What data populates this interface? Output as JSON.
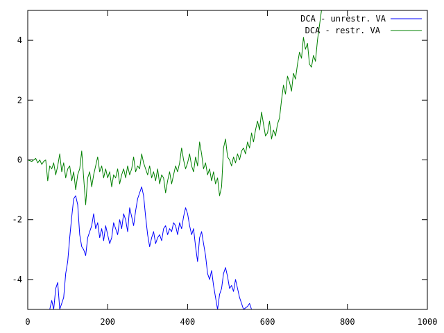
{
  "chart_data": {
    "type": "line",
    "title": "",
    "xlabel": "",
    "ylabel": "",
    "xlim": [
      0,
      1000
    ],
    "ylim": [
      -5,
      5
    ],
    "x_ticks": [
      0,
      200,
      400,
      600,
      800,
      1000
    ],
    "y_ticks": [
      -4,
      -2,
      0,
      2,
      4
    ],
    "x_tick_labels": [
      "0",
      "200",
      "400",
      "600",
      "800",
      "1000"
    ],
    "y_tick_labels": [
      "-4",
      "-2",
      "0",
      "2",
      "4"
    ],
    "grid": false,
    "legend_position": "top-right",
    "series": [
      {
        "name": "DCA - unrestr. VA",
        "color": "#0000ff",
        "points": [
          [
            55,
            -5.0
          ],
          [
            60,
            -4.7
          ],
          [
            65,
            -5.0
          ],
          [
            70,
            -4.3
          ],
          [
            75,
            -4.1
          ],
          [
            80,
            -5.0
          ],
          [
            90,
            -4.6
          ],
          [
            95,
            -3.8
          ],
          [
            100,
            -3.4
          ],
          [
            105,
            -2.6
          ],
          [
            110,
            -1.9
          ],
          [
            115,
            -1.3
          ],
          [
            120,
            -1.2
          ],
          [
            125,
            -1.5
          ],
          [
            130,
            -2.5
          ],
          [
            135,
            -2.9
          ],
          [
            140,
            -3.0
          ],
          [
            145,
            -3.2
          ],
          [
            150,
            -2.6
          ],
          [
            155,
            -2.4
          ],
          [
            160,
            -2.2
          ],
          [
            165,
            -1.8
          ],
          [
            170,
            -2.3
          ],
          [
            175,
            -2.1
          ],
          [
            180,
            -2.6
          ],
          [
            185,
            -2.3
          ],
          [
            190,
            -2.7
          ],
          [
            195,
            -2.2
          ],
          [
            200,
            -2.5
          ],
          [
            205,
            -2.8
          ],
          [
            210,
            -2.6
          ],
          [
            215,
            -2.1
          ],
          [
            220,
            -2.3
          ],
          [
            225,
            -2.5
          ],
          [
            230,
            -2.0
          ],
          [
            235,
            -2.3
          ],
          [
            240,
            -1.8
          ],
          [
            245,
            -2.0
          ],
          [
            250,
            -2.4
          ],
          [
            255,
            -1.6
          ],
          [
            260,
            -1.9
          ],
          [
            265,
            -2.2
          ],
          [
            270,
            -1.7
          ],
          [
            275,
            -1.3
          ],
          [
            280,
            -1.1
          ],
          [
            285,
            -0.9
          ],
          [
            290,
            -1.2
          ],
          [
            295,
            -1.9
          ],
          [
            300,
            -2.5
          ],
          [
            305,
            -2.9
          ],
          [
            310,
            -2.6
          ],
          [
            315,
            -2.4
          ],
          [
            320,
            -2.8
          ],
          [
            325,
            -2.6
          ],
          [
            330,
            -2.5
          ],
          [
            335,
            -2.7
          ],
          [
            340,
            -2.3
          ],
          [
            345,
            -2.2
          ],
          [
            350,
            -2.5
          ],
          [
            355,
            -2.3
          ],
          [
            360,
            -2.4
          ],
          [
            365,
            -2.1
          ],
          [
            370,
            -2.2
          ],
          [
            375,
            -2.5
          ],
          [
            380,
            -2.1
          ],
          [
            385,
            -2.3
          ],
          [
            390,
            -1.9
          ],
          [
            395,
            -1.6
          ],
          [
            400,
            -1.8
          ],
          [
            405,
            -2.2
          ],
          [
            410,
            -2.5
          ],
          [
            415,
            -2.3
          ],
          [
            420,
            -2.9
          ],
          [
            425,
            -3.4
          ],
          [
            430,
            -2.6
          ],
          [
            435,
            -2.4
          ],
          [
            440,
            -2.8
          ],
          [
            445,
            -3.2
          ],
          [
            450,
            -3.8
          ],
          [
            455,
            -4.0
          ],
          [
            460,
            -3.7
          ],
          [
            465,
            -4.2
          ],
          [
            470,
            -4.6
          ],
          [
            475,
            -5.0
          ],
          [
            480,
            -4.5
          ],
          [
            485,
            -4.3
          ],
          [
            490,
            -3.8
          ],
          [
            495,
            -3.6
          ],
          [
            500,
            -3.9
          ],
          [
            505,
            -4.3
          ],
          [
            510,
            -4.2
          ],
          [
            515,
            -4.4
          ],
          [
            520,
            -4.0
          ],
          [
            525,
            -4.3
          ],
          [
            530,
            -4.6
          ],
          [
            535,
            -4.8
          ],
          [
            540,
            -5.0
          ],
          [
            550,
            -4.9
          ],
          [
            555,
            -4.8
          ],
          [
            560,
            -5.0
          ]
        ]
      },
      {
        "name": "DCA - restr. VA",
        "color": "#008000",
        "points": [
          [
            0,
            0.0
          ],
          [
            10,
            -0.05
          ],
          [
            20,
            0.05
          ],
          [
            25,
            -0.1
          ],
          [
            30,
            0.0
          ],
          [
            35,
            -0.15
          ],
          [
            40,
            -0.05
          ],
          [
            45,
            0.0
          ],
          [
            50,
            -0.7
          ],
          [
            55,
            -0.2
          ],
          [
            60,
            -0.3
          ],
          [
            65,
            -0.1
          ],
          [
            70,
            -0.5
          ],
          [
            75,
            -0.2
          ],
          [
            80,
            0.2
          ],
          [
            85,
            -0.4
          ],
          [
            90,
            -0.1
          ],
          [
            95,
            -0.6
          ],
          [
            100,
            -0.3
          ],
          [
            105,
            -0.2
          ],
          [
            110,
            -0.7
          ],
          [
            115,
            -0.4
          ],
          [
            120,
            -1.0
          ],
          [
            125,
            -0.5
          ],
          [
            130,
            -0.3
          ],
          [
            135,
            0.3
          ],
          [
            140,
            -0.6
          ],
          [
            145,
            -1.5
          ],
          [
            150,
            -0.6
          ],
          [
            155,
            -0.4
          ],
          [
            160,
            -0.9
          ],
          [
            165,
            -0.5
          ],
          [
            170,
            -0.2
          ],
          [
            175,
            0.1
          ],
          [
            180,
            -0.4
          ],
          [
            185,
            -0.2
          ],
          [
            190,
            -0.6
          ],
          [
            195,
            -0.3
          ],
          [
            200,
            -0.6
          ],
          [
            205,
            -0.4
          ],
          [
            210,
            -0.9
          ],
          [
            215,
            -0.5
          ],
          [
            220,
            -0.6
          ],
          [
            225,
            -0.3
          ],
          [
            230,
            -0.8
          ],
          [
            235,
            -0.5
          ],
          [
            240,
            -0.3
          ],
          [
            245,
            -0.6
          ],
          [
            250,
            -0.2
          ],
          [
            255,
            -0.5
          ],
          [
            260,
            -0.3
          ],
          [
            265,
            0.1
          ],
          [
            270,
            -0.4
          ],
          [
            275,
            -0.2
          ],
          [
            280,
            -0.3
          ],
          [
            285,
            0.2
          ],
          [
            290,
            -0.1
          ],
          [
            295,
            -0.3
          ],
          [
            300,
            -0.5
          ],
          [
            305,
            -0.2
          ],
          [
            310,
            -0.6
          ],
          [
            315,
            -0.4
          ],
          [
            320,
            -0.7
          ],
          [
            325,
            -0.3
          ],
          [
            330,
            -0.8
          ],
          [
            335,
            -0.5
          ],
          [
            340,
            -0.6
          ],
          [
            345,
            -1.1
          ],
          [
            350,
            -0.7
          ],
          [
            355,
            -0.4
          ],
          [
            360,
            -0.8
          ],
          [
            365,
            -0.5
          ],
          [
            370,
            -0.2
          ],
          [
            375,
            -0.4
          ],
          [
            380,
            -0.1
          ],
          [
            385,
            0.4
          ],
          [
            390,
            0.0
          ],
          [
            395,
            -0.3
          ],
          [
            400,
            -0.1
          ],
          [
            405,
            0.2
          ],
          [
            410,
            -0.2
          ],
          [
            415,
            -0.4
          ],
          [
            420,
            0.1
          ],
          [
            425,
            -0.2
          ],
          [
            430,
            0.6
          ],
          [
            435,
            0.2
          ],
          [
            440,
            -0.3
          ],
          [
            445,
            -0.1
          ],
          [
            450,
            -0.5
          ],
          [
            455,
            -0.3
          ],
          [
            460,
            -0.7
          ],
          [
            465,
            -0.4
          ],
          [
            470,
            -0.8
          ],
          [
            475,
            -0.6
          ],
          [
            480,
            -1.2
          ],
          [
            485,
            -0.9
          ],
          [
            490,
            0.4
          ],
          [
            495,
            0.7
          ],
          [
            500,
            0.1
          ],
          [
            505,
            0.0
          ],
          [
            510,
            -0.2
          ],
          [
            515,
            0.1
          ],
          [
            520,
            -0.1
          ],
          [
            525,
            0.2
          ],
          [
            530,
            0.0
          ],
          [
            535,
            0.3
          ],
          [
            540,
            0.4
          ],
          [
            545,
            0.2
          ],
          [
            550,
            0.6
          ],
          [
            555,
            0.4
          ],
          [
            560,
            0.9
          ],
          [
            565,
            0.6
          ],
          [
            570,
            1.0
          ],
          [
            575,
            1.3
          ],
          [
            580,
            1.0
          ],
          [
            585,
            1.6
          ],
          [
            590,
            1.2
          ],
          [
            595,
            0.8
          ],
          [
            600,
            0.9
          ],
          [
            605,
            1.3
          ],
          [
            610,
            0.7
          ],
          [
            615,
            1.0
          ],
          [
            620,
            0.8
          ],
          [
            625,
            1.2
          ],
          [
            630,
            1.4
          ],
          [
            635,
            2.0
          ],
          [
            640,
            2.5
          ],
          [
            645,
            2.2
          ],
          [
            650,
            2.8
          ],
          [
            655,
            2.6
          ],
          [
            660,
            2.3
          ],
          [
            665,
            2.9
          ],
          [
            670,
            2.7
          ],
          [
            675,
            3.2
          ],
          [
            680,
            3.6
          ],
          [
            685,
            3.4
          ],
          [
            690,
            4.1
          ],
          [
            695,
            3.7
          ],
          [
            700,
            3.9
          ],
          [
            705,
            3.2
          ],
          [
            710,
            3.1
          ],
          [
            715,
            3.5
          ],
          [
            720,
            3.3
          ],
          [
            725,
            4.0
          ],
          [
            730,
            4.5
          ],
          [
            735,
            5.0
          ]
        ]
      }
    ]
  }
}
